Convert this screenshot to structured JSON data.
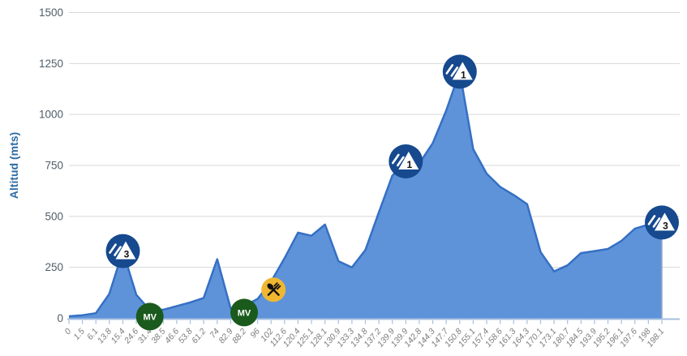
{
  "chart_data": {
    "type": "area",
    "title": "",
    "xlabel": "",
    "ylabel": "Altitud (mts)",
    "ylim": [
      0,
      1500
    ],
    "yticks": [
      0,
      250,
      500,
      750,
      1000,
      1250,
      1500
    ],
    "grid": "horizontal",
    "legend": "none",
    "categories": [
      "0",
      "1.5",
      "6.1",
      "13.8",
      "15.4",
      "24.6",
      "31.4",
      "38.5",
      "46.6",
      "53.8",
      "61.2",
      "74",
      "82.9",
      "88.2",
      "96",
      "102",
      "112.6",
      "120.4",
      "125.1",
      "128.1",
      "130.9",
      "133.3",
      "134.8",
      "137.2",
      "139.9",
      "139.9",
      "142.8",
      "144.3",
      "147.7",
      "150.8",
      "155.1",
      "157.4",
      "158.6",
      "161.3",
      "164.3",
      "170.1",
      "173.1",
      "180.7",
      "184.5",
      "193.9",
      "195.2",
      "196.1",
      "197.6",
      "198",
      "198.1"
    ],
    "values": [
      10,
      15,
      25,
      120,
      330,
      115,
      40,
      42,
      60,
      78,
      100,
      290,
      48,
      60,
      95,
      180,
      295,
      420,
      405,
      460,
      280,
      250,
      335,
      520,
      700,
      770,
      760,
      860,
      1020,
      1210,
      830,
      710,
      645,
      605,
      560,
      325,
      230,
      260,
      320,
      330,
      340,
      380,
      440,
      460,
      470
    ],
    "markers": [
      {
        "type": "climb",
        "category": "3",
        "km": "15.4",
        "index": 4
      },
      {
        "type": "sprint",
        "label": "MV",
        "km": "31.4",
        "index": 6
      },
      {
        "type": "sprint",
        "label": "MV",
        "km": "88.2",
        "index": 13
      },
      {
        "type": "feed-zone",
        "km": "102",
        "index": 15
      },
      {
        "type": "climb",
        "category": "1",
        "km": "139.9",
        "index": 25
      },
      {
        "type": "climb",
        "category": "1",
        "km": "150.8",
        "index": 29
      },
      {
        "type": "climb",
        "category": "3",
        "km": "198.1",
        "index": 44
      }
    ],
    "colors": {
      "area_fill": "#5E93D9",
      "line": "#3570C4",
      "edge": "#93A9C4",
      "grid": "#D8D8D8",
      "axis": "#A4BEE0",
      "y_label": "#4F5D68",
      "x_label": "#7D7D7D",
      "y_title": "#2E6DA4",
      "climb_marker": "#16498E",
      "climb_number": "#111111",
      "sprint_marker": "#1A5A1C",
      "sprint_text": "#FFFFFF",
      "feed_marker": "#F0B731",
      "feed_glyph": "#111111"
    }
  }
}
